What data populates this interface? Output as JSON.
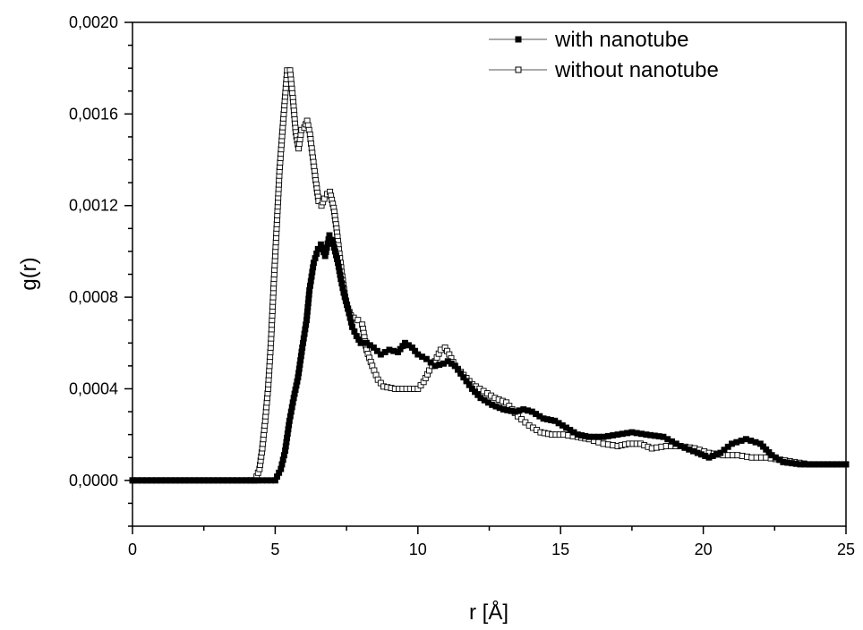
{
  "chart_data": {
    "type": "scatter",
    "xlabel": "r [Å]",
    "ylabel": "g(r)",
    "xlim": [
      0,
      25
    ],
    "ylim": [
      -0.0002,
      0.002
    ],
    "x_ticks": [
      0,
      5,
      10,
      15,
      20,
      25
    ],
    "x_tick_labels": [
      "0",
      "5",
      "10",
      "15",
      "20",
      "25"
    ],
    "y_ticks": [
      0.0,
      0.0004,
      0.0008,
      0.0012,
      0.0016,
      0.002
    ],
    "y_tick_labels": [
      "0,0000",
      "0,0004",
      "0,0008",
      "0,0012",
      "0,0016",
      "0,0020"
    ],
    "grid": false,
    "legend_position": "top-right",
    "series": [
      {
        "name": "with nanotube",
        "marker": "filled-square",
        "color": "#000000",
        "points": [
          [
            0.0,
            0.0
          ],
          [
            0.5,
            0.0
          ],
          [
            1.0,
            0.0
          ],
          [
            1.5,
            0.0
          ],
          [
            2.0,
            0.0
          ],
          [
            2.5,
            0.0
          ],
          [
            3.0,
            0.0
          ],
          [
            3.5,
            0.0
          ],
          [
            4.0,
            0.0
          ],
          [
            4.4,
            0.0
          ],
          [
            4.7,
            0.0
          ],
          [
            5.0,
            0.0
          ],
          [
            5.2,
            5e-05
          ],
          [
            5.35,
            0.00013
          ],
          [
            5.5,
            0.00026
          ],
          [
            5.65,
            0.00036
          ],
          [
            5.8,
            0.00045
          ],
          [
            5.95,
            0.00058
          ],
          [
            6.1,
            0.0007
          ],
          [
            6.2,
            0.00083
          ],
          [
            6.35,
            0.00095
          ],
          [
            6.5,
            0.00101
          ],
          [
            6.6,
            0.00103
          ],
          [
            6.75,
            0.00098
          ],
          [
            6.9,
            0.00107
          ],
          [
            7.0,
            0.00105
          ],
          [
            7.1,
            0.001
          ],
          [
            7.2,
            0.00095
          ],
          [
            7.3,
            0.00088
          ],
          [
            7.4,
            0.00082
          ],
          [
            7.55,
            0.00075
          ],
          [
            7.7,
            0.00067
          ],
          [
            7.85,
            0.00063
          ],
          [
            8.0,
            0.0006
          ],
          [
            8.2,
            0.0006
          ],
          [
            8.45,
            0.00058
          ],
          [
            8.7,
            0.00055
          ],
          [
            9.0,
            0.00057
          ],
          [
            9.3,
            0.00056
          ],
          [
            9.55,
            0.0006
          ],
          [
            9.8,
            0.00058
          ],
          [
            10.0,
            0.00055
          ],
          [
            10.3,
            0.00053
          ],
          [
            10.6,
            0.0005
          ],
          [
            10.9,
            0.00051
          ],
          [
            11.05,
            0.00052
          ],
          [
            11.3,
            0.0005
          ],
          [
            11.6,
            0.00045
          ],
          [
            11.9,
            0.0004
          ],
          [
            12.2,
            0.00036
          ],
          [
            12.6,
            0.00033
          ],
          [
            13.0,
            0.00031
          ],
          [
            13.4,
            0.0003
          ],
          [
            13.7,
            0.00031
          ],
          [
            14.0,
            0.0003
          ],
          [
            14.4,
            0.00027
          ],
          [
            14.8,
            0.00026
          ],
          [
            15.2,
            0.00023
          ],
          [
            15.6,
            0.0002
          ],
          [
            16.0,
            0.00019
          ],
          [
            16.5,
            0.00019
          ],
          [
            17.0,
            0.0002
          ],
          [
            17.5,
            0.00021
          ],
          [
            18.0,
            0.0002
          ],
          [
            18.6,
            0.00019
          ],
          [
            19.2,
            0.00015
          ],
          [
            19.8,
            0.00012
          ],
          [
            20.2,
            0.0001
          ],
          [
            20.6,
            0.00012
          ],
          [
            21.0,
            0.00016
          ],
          [
            21.5,
            0.00018
          ],
          [
            22.0,
            0.00016
          ],
          [
            22.4,
            0.00011
          ],
          [
            22.8,
            8e-05
          ],
          [
            23.4,
            7e-05
          ],
          [
            24.2,
            7e-05
          ],
          [
            25.0,
            7e-05
          ]
        ]
      },
      {
        "name": "without nanotube",
        "marker": "open-square",
        "color": "#000000",
        "points": [
          [
            0.0,
            0.0
          ],
          [
            0.5,
            0.0
          ],
          [
            1.0,
            0.0
          ],
          [
            1.5,
            0.0
          ],
          [
            2.0,
            0.0
          ],
          [
            2.5,
            0.0
          ],
          [
            3.0,
            0.0
          ],
          [
            3.5,
            0.0
          ],
          [
            4.0,
            0.0
          ],
          [
            4.3,
            0.0
          ],
          [
            4.45,
            5e-05
          ],
          [
            4.55,
            0.00014
          ],
          [
            4.65,
            0.00026
          ],
          [
            4.75,
            0.0004
          ],
          [
            4.85,
            0.0006
          ],
          [
            4.95,
            0.00086
          ],
          [
            5.05,
            0.0011
          ],
          [
            5.15,
            0.00135
          ],
          [
            5.3,
            0.0016
          ],
          [
            5.42,
            0.00179
          ],
          [
            5.52,
            0.00179
          ],
          [
            5.62,
            0.00167
          ],
          [
            5.72,
            0.00152
          ],
          [
            5.82,
            0.00145
          ],
          [
            5.92,
            0.00153
          ],
          [
            6.02,
            0.00154
          ],
          [
            6.12,
            0.00157
          ],
          [
            6.22,
            0.00151
          ],
          [
            6.32,
            0.00141
          ],
          [
            6.42,
            0.00131
          ],
          [
            6.52,
            0.00122
          ],
          [
            6.62,
            0.0012
          ],
          [
            6.72,
            0.00123
          ],
          [
            6.82,
            0.00125
          ],
          [
            6.92,
            0.00126
          ],
          [
            7.05,
            0.00119
          ],
          [
            7.15,
            0.0011
          ],
          [
            7.25,
            0.00099
          ],
          [
            7.35,
            0.00089
          ],
          [
            7.45,
            0.0008
          ],
          [
            7.55,
            0.00075
          ],
          [
            7.65,
            0.00072
          ],
          [
            7.75,
            0.00071
          ],
          [
            7.9,
            0.0007
          ],
          [
            8.05,
            0.00068
          ],
          [
            8.2,
            0.00057
          ],
          [
            8.4,
            0.0005
          ],
          [
            8.6,
            0.00044
          ],
          [
            8.8,
            0.00041
          ],
          [
            9.2,
            0.0004
          ],
          [
            9.6,
            0.0004
          ],
          [
            10.0,
            0.0004
          ],
          [
            10.2,
            0.00043
          ],
          [
            10.4,
            0.00048
          ],
          [
            10.6,
            0.00052
          ],
          [
            10.8,
            0.00057
          ],
          [
            10.95,
            0.00058
          ],
          [
            11.1,
            0.00055
          ],
          [
            11.3,
            0.0005
          ],
          [
            11.6,
            0.00046
          ],
          [
            11.9,
            0.00042
          ],
          [
            12.3,
            0.00039
          ],
          [
            12.7,
            0.00036
          ],
          [
            13.1,
            0.00034
          ],
          [
            13.5,
            0.00028
          ],
          [
            13.9,
            0.00024
          ],
          [
            14.3,
            0.00021
          ],
          [
            14.7,
            0.0002
          ],
          [
            15.1,
            0.0002
          ],
          [
            15.6,
            0.00019
          ],
          [
            16.0,
            0.00018
          ],
          [
            16.5,
            0.00016
          ],
          [
            17.0,
            0.00015
          ],
          [
            17.4,
            0.00016
          ],
          [
            17.8,
            0.00016
          ],
          [
            18.2,
            0.00014
          ],
          [
            18.7,
            0.00015
          ],
          [
            19.2,
            0.00015
          ],
          [
            19.7,
            0.00014
          ],
          [
            20.2,
            0.00012
          ],
          [
            20.7,
            0.00011
          ],
          [
            21.2,
            0.00011
          ],
          [
            21.7,
            0.0001
          ],
          [
            22.2,
            0.0001
          ],
          [
            22.7,
            9e-05
          ],
          [
            23.2,
            8e-05
          ],
          [
            23.7,
            7e-05
          ],
          [
            24.2,
            7e-05
          ],
          [
            25.0,
            7e-05
          ]
        ]
      }
    ]
  }
}
